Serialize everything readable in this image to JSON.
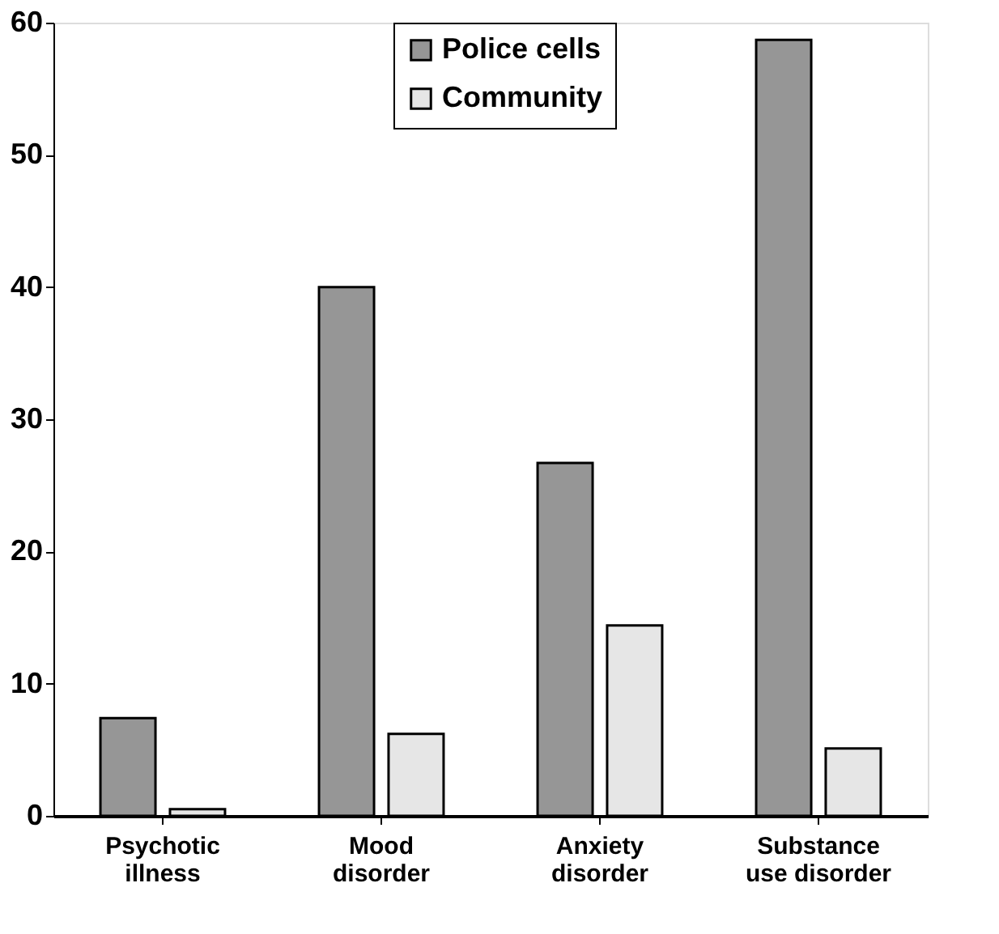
{
  "chart_data": {
    "type": "bar",
    "categories": [
      "Psychotic\nillness",
      "Mood\ndisorder",
      "Anxiety\ndisorder",
      "Substance\nuse disorder"
    ],
    "series": [
      {
        "name": "Police cells",
        "color": "#969696",
        "values": [
          7.4,
          40.0,
          26.7,
          58.7
        ]
      },
      {
        "name": "Community",
        "color": "#e6e6e6",
        "values": [
          0.5,
          6.2,
          14.4,
          5.1
        ]
      }
    ],
    "ylim": [
      0,
      60
    ],
    "yticks": [
      0,
      10,
      20,
      30,
      40,
      50,
      60
    ],
    "grid": false,
    "legend": "top"
  }
}
